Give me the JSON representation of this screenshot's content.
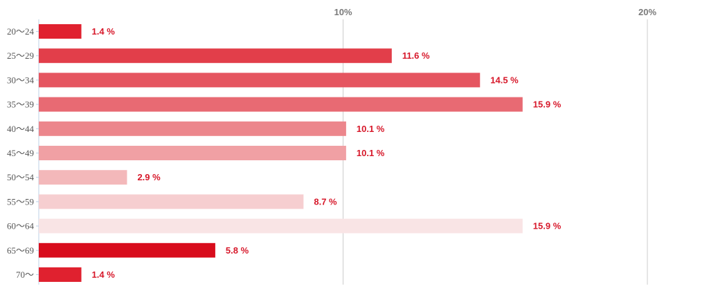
{
  "chart_data": {
    "type": "bar",
    "orientation": "horizontal",
    "title": "",
    "xlabel": "",
    "ylabel": "",
    "xlim": [
      0,
      21.5
    ],
    "ticks": [
      {
        "value": 10,
        "label": "10%"
      },
      {
        "value": 20,
        "label": "20%"
      }
    ],
    "grid": true,
    "value_suffix": " %",
    "categories": [
      "20〜24",
      "25〜29",
      "30〜34",
      "35〜39",
      "40〜44",
      "45〜49",
      "50〜54",
      "55〜59",
      "60〜64",
      "65〜69",
      "70〜"
    ],
    "values": [
      1.4,
      11.6,
      14.5,
      15.9,
      10.1,
      10.1,
      2.9,
      8.7,
      15.9,
      5.8,
      1.4
    ],
    "value_labels": [
      "1.4 %",
      "11.6 %",
      "14.5 %",
      "15.9 %",
      "10.1 %",
      "10.1 %",
      "2.9 %",
      "8.7 %",
      "15.9 %",
      "5.8 %",
      "1.4 %"
    ],
    "colors": [
      "#e0212f",
      "#e23e4a",
      "#e55560",
      "#e86a73",
      "#ec868c",
      "#f0a0a4",
      "#f3b8ba",
      "#f6ced0",
      "#f9e4e5",
      "#d80c1c",
      "#e0212f"
    ],
    "label_color": "#d7182a",
    "grid_color": "#cccccc"
  }
}
